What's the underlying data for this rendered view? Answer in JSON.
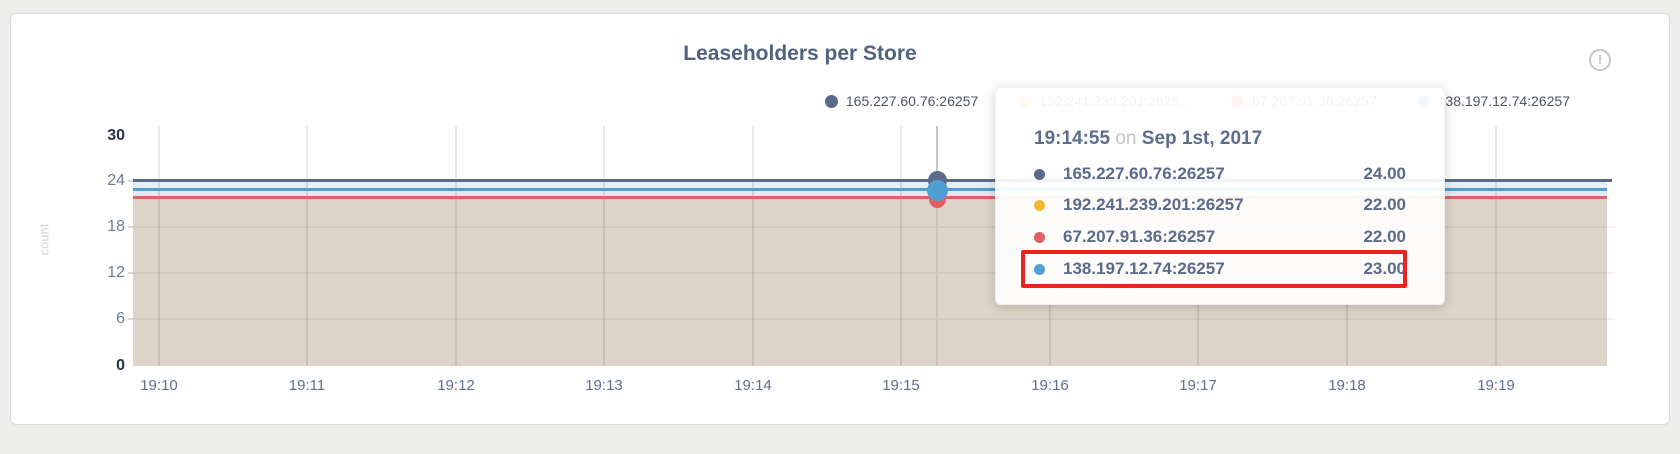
{
  "header": {
    "title": "Leaseholders per Store",
    "info_icon": "!"
  },
  "legend": {
    "items": [
      {
        "label": "165.227.60.76:26257",
        "color": "#5b6a88"
      },
      {
        "label": "192.241.239.201:2625...",
        "color": "#eeb82f"
      },
      {
        "label": "67.207.91.36:26257",
        "color": "#e06065"
      },
      {
        "label": "138.197.12.74:26257",
        "color": "#4f9fd4"
      }
    ]
  },
  "axes": {
    "ylabel": "count",
    "y_ticks": [
      "30",
      "24",
      "18",
      "12",
      "6",
      "0"
    ],
    "x_ticks": [
      "19:10",
      "19:11",
      "19:12",
      "19:13",
      "19:14",
      "19:15",
      "19:16",
      "19:17",
      "19:18",
      "19:19"
    ]
  },
  "tooltip": {
    "time": "19:14:55",
    "conjunction": "on",
    "date": "Sep 1st, 2017",
    "rows": [
      {
        "name": "165.227.60.76:26257",
        "value": "24.00",
        "color": "#5b6a88"
      },
      {
        "name": "192.241.239.201:26257",
        "value": "22.00",
        "color": "#eeb82f"
      },
      {
        "name": "67.207.91.36:26257",
        "value": "22.00",
        "color": "#e06065"
      },
      {
        "name": "138.197.12.74:26257",
        "value": "23.00",
        "color": "#4f9fd4"
      }
    ],
    "highlighted_row": "138.197.12.74:26257",
    "highlight_color": "#ea241c"
  },
  "chart_data": {
    "type": "area",
    "title": "Leaseholders per Store",
    "xlabel": "",
    "ylabel": "count",
    "ylim": [
      0,
      30
    ],
    "y_tick_values": [
      0,
      6,
      12,
      18,
      24,
      30
    ],
    "x": [
      "19:10",
      "19:11",
      "19:12",
      "19:13",
      "19:14",
      "19:15",
      "19:16",
      "19:17",
      "19:18",
      "19:19"
    ],
    "grid": "on",
    "legend_position": "top-right",
    "series": [
      {
        "name": "165.227.60.76:26257",
        "color": "#5b6a88",
        "values": [
          24,
          24,
          24,
          24,
          24,
          24,
          24,
          24,
          24,
          24
        ]
      },
      {
        "name": "192.241.239.201:26257",
        "color": "#eeb82f",
        "values": [
          22,
          22,
          22,
          22,
          22,
          22,
          22,
          22,
          22,
          22
        ]
      },
      {
        "name": "67.207.91.36:26257",
        "color": "#e06065",
        "values": [
          22,
          22,
          22,
          22,
          22,
          22,
          22,
          22,
          22,
          22
        ]
      },
      {
        "name": "138.197.12.74:26257",
        "color": "#4f9fd4",
        "values": [
          23,
          23,
          23,
          23,
          23,
          23,
          23,
          23,
          23,
          23
        ]
      }
    ],
    "hover_point": {
      "time": "19:14:55",
      "date": "Sep 1st, 2017",
      "values": {
        "165.227.60.76:26257": 24.0,
        "192.241.239.201:26257": 22.0,
        "67.207.91.36:26257": 22.0,
        "138.197.12.74:26257": 23.0
      }
    }
  }
}
